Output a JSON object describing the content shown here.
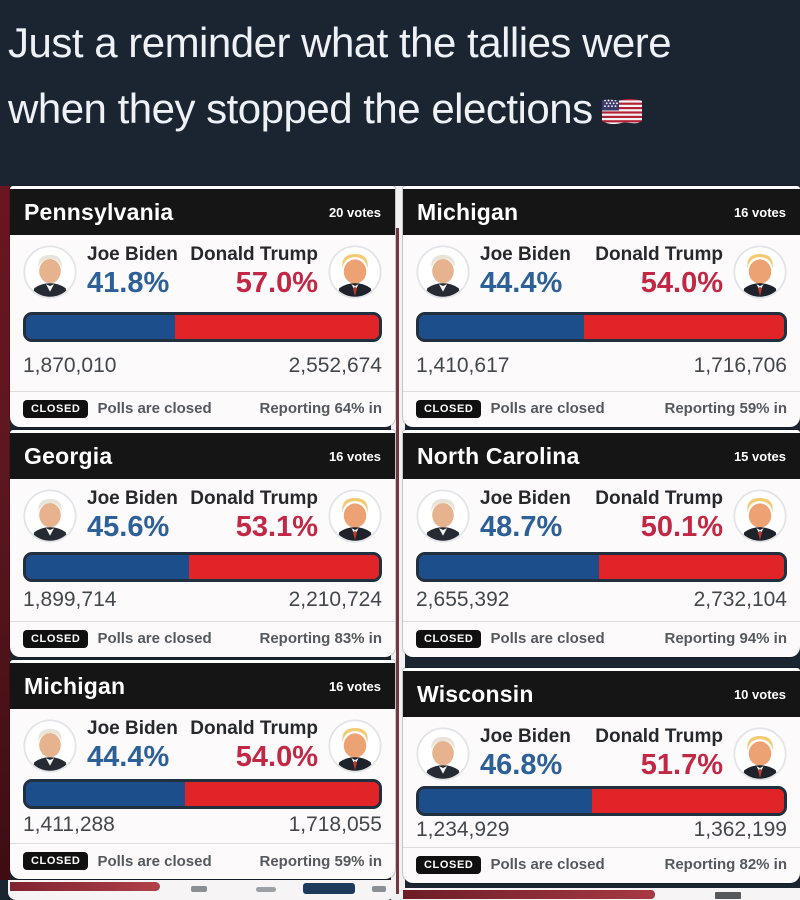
{
  "headline": {
    "line1": "Just a reminder what the tallies were",
    "line2": "when they stopped the elections",
    "flag_icon": "us-flag"
  },
  "candidates": {
    "biden": "Joe Biden",
    "trump": "Donald Trump"
  },
  "labels": {
    "closed_badge": "CLOSED",
    "polls_closed": "Polls are closed"
  },
  "colors": {
    "page_bg": "#1a2531",
    "headline_text": "#eef2f6",
    "header_bg": "#151515",
    "card_bg": "#fcfafa",
    "biden_blue": "#1d4e8c",
    "trump_red": "#e02427",
    "biden_text": "#2e6098",
    "trump_text": "#c22845",
    "bar_border": "#20303f",
    "badge_bg": "#101010",
    "strip_red": "#5d1720"
  },
  "cards": [
    {
      "state": "Pennsylvania",
      "votes": "20 votes",
      "biden_pct": "41.8%",
      "trump_pct": "57.0%",
      "biden_votes": "1,870,010",
      "trump_votes": "2,552,674",
      "reporting": "Reporting 64% in"
    },
    {
      "state": "Michigan",
      "votes": "16 votes",
      "biden_pct": "44.4%",
      "trump_pct": "54.0%",
      "biden_votes": "1,410,617",
      "trump_votes": "1,716,706",
      "reporting": "Reporting 59% in"
    },
    {
      "state": "Georgia",
      "votes": "16 votes",
      "biden_pct": "45.6%",
      "trump_pct": "53.1%",
      "biden_votes": "1,899,714",
      "trump_votes": "2,210,724",
      "reporting": "Reporting 83% in"
    },
    {
      "state": "North Carolina",
      "votes": "15 votes",
      "biden_pct": "48.7%",
      "trump_pct": "50.1%",
      "biden_votes": "2,655,392",
      "trump_votes": "2,732,104",
      "reporting": "Reporting 94% in"
    },
    {
      "state": "Michigan",
      "votes": "16 votes",
      "biden_pct": "44.4%",
      "trump_pct": "54.0%",
      "biden_votes": "1,411,288",
      "trump_votes": "1,718,055",
      "reporting": "Reporting 59% in"
    },
    {
      "state": "Wisconsin",
      "votes": "10 votes",
      "biden_pct": "46.8%",
      "trump_pct": "51.7%",
      "biden_votes": "1,234,929",
      "trump_votes": "1,362,199",
      "reporting": "Reporting 82% in"
    }
  ]
}
